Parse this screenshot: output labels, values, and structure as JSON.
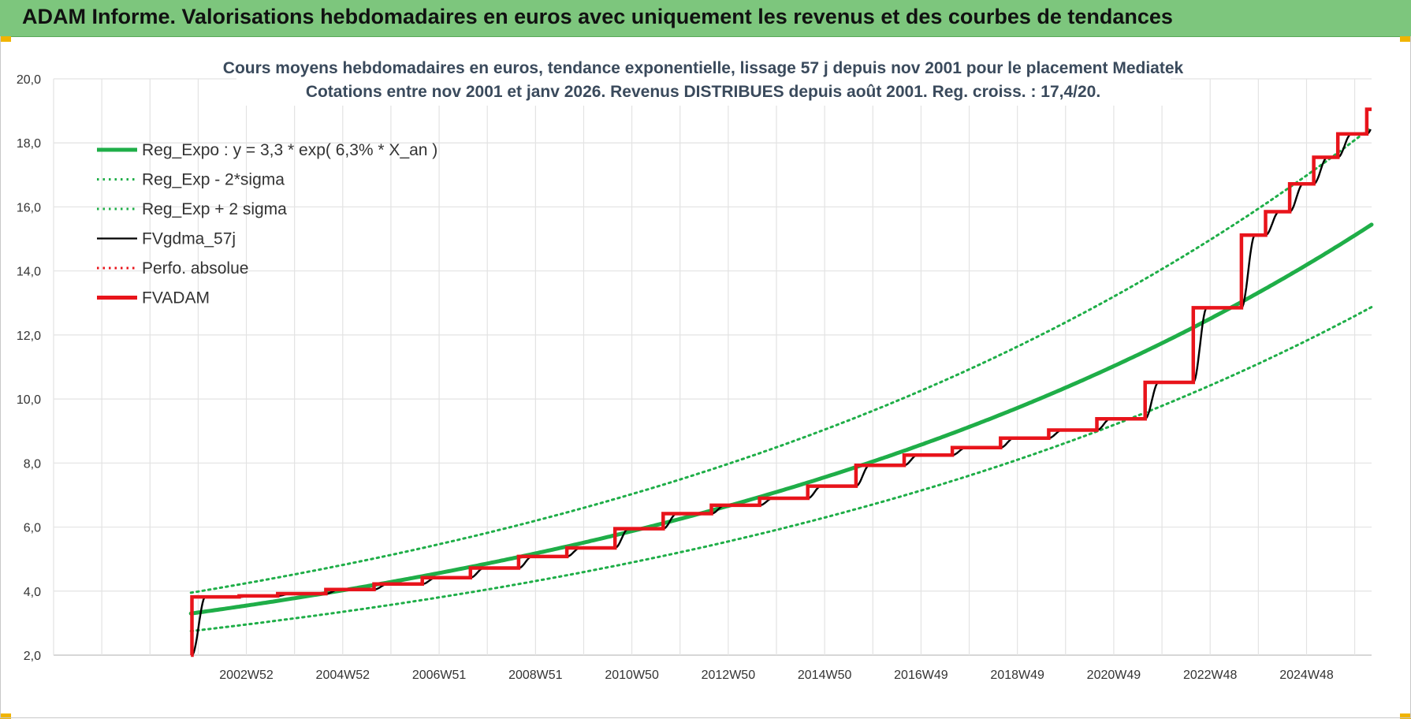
{
  "header": {
    "title": "ADAM Informe. Valorisations hebdomadaires en euros avec uniquement les revenus et des courbes de tendances"
  },
  "chart_data": {
    "type": "line",
    "title_line1": "Cours moyens hebdomadaires en euros, tendance exponentielle, lissage 57 j depuis nov 2001 pour le placement Mediatek",
    "title_line2": "Cotations entre nov 2001 et janv 2026. Revenus DISTRIBUES depuis août 2001. Reg. croiss. : 17,4/20.",
    "ylim": [
      2,
      20
    ],
    "yticks": [
      "2,0",
      "4,0",
      "6,0",
      "8,0",
      "10,0",
      "12,0",
      "14,0",
      "16,0",
      "18,0",
      "20,0"
    ],
    "xlim": [
      1998.95,
      2026.3
    ],
    "xticks": [
      {
        "label": "2002W52",
        "x": 2002.95
      },
      {
        "label": "2004W52",
        "x": 2004.95
      },
      {
        "label": "2006W51",
        "x": 2006.95
      },
      {
        "label": "2008W51",
        "x": 2008.95
      },
      {
        "label": "2010W50",
        "x": 2010.95
      },
      {
        "label": "2012W50",
        "x": 2012.95
      },
      {
        "label": "2014W50",
        "x": 2014.95
      },
      {
        "label": "2016W49",
        "x": 2016.95
      },
      {
        "label": "2018W49",
        "x": 2018.95
      },
      {
        "label": "2020W49",
        "x": 2020.95
      },
      {
        "label": "2022W48",
        "x": 2022.95
      },
      {
        "label": "2024W48",
        "x": 2024.95
      }
    ],
    "legend_position": "top-left",
    "series": [
      {
        "name": "Reg_Expo : y = 3,3 * exp( 6,3% *  X_an )",
        "color": "#1fae48",
        "style": "solid-thick",
        "model": {
          "a": 3.3,
          "rate": 0.063,
          "x_start": 2001.8,
          "x_end": 2026.3
        }
      },
      {
        "name": "Reg_Exp - 2*sigma",
        "color": "#1fae48",
        "style": "dotted",
        "model": {
          "a": 2.75,
          "rate": 0.063,
          "x_start": 2001.8,
          "x_end": 2026.3
        }
      },
      {
        "name": "Reg_Exp + 2 sigma",
        "color": "#1fae48",
        "style": "dotted",
        "model": {
          "a": 3.95,
          "rate": 0.063,
          "x_start": 2001.8,
          "x_end": 2026.3
        }
      },
      {
        "name": "FVgdma_57j",
        "color": "#000000",
        "style": "solid-thin"
      },
      {
        "name": "Perfo. absolue",
        "color": "#e8141b",
        "style": "dotted"
      },
      {
        "name": "FVADAM",
        "color": "#e8141b",
        "style": "solid-thick",
        "steps": [
          {
            "x": 2001.8,
            "y": 2.0
          },
          {
            "x": 2001.82,
            "y": 3.82
          },
          {
            "x": 2002.8,
            "y": 3.85
          },
          {
            "x": 2003.6,
            "y": 3.92
          },
          {
            "x": 2004.6,
            "y": 4.05
          },
          {
            "x": 2005.6,
            "y": 4.22
          },
          {
            "x": 2006.6,
            "y": 4.42
          },
          {
            "x": 2007.6,
            "y": 4.72
          },
          {
            "x": 2008.6,
            "y": 5.08
          },
          {
            "x": 2009.6,
            "y": 5.35
          },
          {
            "x": 2010.6,
            "y": 5.95
          },
          {
            "x": 2011.6,
            "y": 6.42
          },
          {
            "x": 2012.6,
            "y": 6.68
          },
          {
            "x": 2013.6,
            "y": 6.9
          },
          {
            "x": 2014.6,
            "y": 7.28
          },
          {
            "x": 2015.6,
            "y": 7.93
          },
          {
            "x": 2016.6,
            "y": 8.25
          },
          {
            "x": 2017.6,
            "y": 8.48
          },
          {
            "x": 2018.6,
            "y": 8.78
          },
          {
            "x": 2019.6,
            "y": 9.03
          },
          {
            "x": 2020.6,
            "y": 9.38
          },
          {
            "x": 2021.6,
            "y": 10.52
          },
          {
            "x": 2022.6,
            "y": 12.85
          },
          {
            "x": 2023.6,
            "y": 15.12
          },
          {
            "x": 2024.1,
            "y": 15.85
          },
          {
            "x": 2024.6,
            "y": 16.72
          },
          {
            "x": 2025.1,
            "y": 17.55
          },
          {
            "x": 2025.6,
            "y": 18.28
          },
          {
            "x": 2026.2,
            "y": 19.05
          }
        ],
        "x_end": 2026.3
      }
    ]
  }
}
